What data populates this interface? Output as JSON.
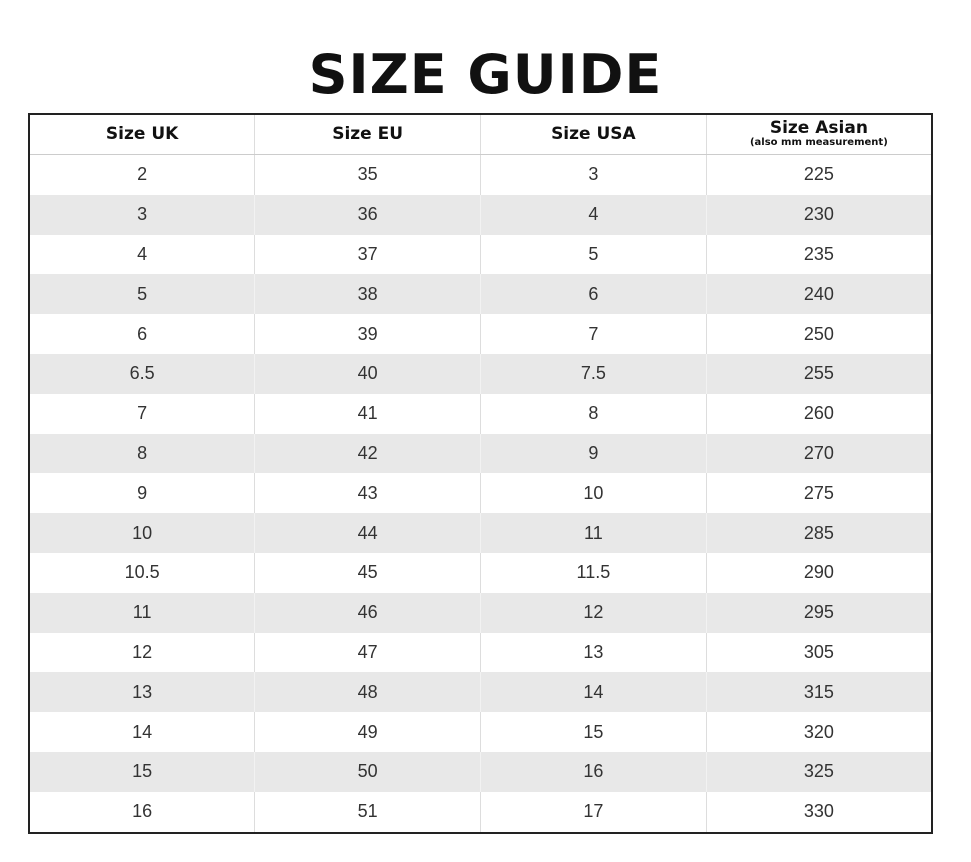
{
  "title": "SIZE GUIDE",
  "table": {
    "headers": [
      {
        "label": "Size UK",
        "sub": ""
      },
      {
        "label": "Size EU",
        "sub": ""
      },
      {
        "label": "Size USA",
        "sub": ""
      },
      {
        "label": "Size Asian",
        "sub": "(also mm measurement)"
      }
    ],
    "rows": [
      [
        "2",
        "35",
        "3",
        "225"
      ],
      [
        "3",
        "36",
        "4",
        "230"
      ],
      [
        "4",
        "37",
        "5",
        "235"
      ],
      [
        "5",
        "38",
        "6",
        "240"
      ],
      [
        "6",
        "39",
        "7",
        "250"
      ],
      [
        "6.5",
        "40",
        "7.5",
        "255"
      ],
      [
        "7",
        "41",
        "8",
        "260"
      ],
      [
        "8",
        "42",
        "9",
        "270"
      ],
      [
        "9",
        "43",
        "10",
        "275"
      ],
      [
        "10",
        "44",
        "11",
        "285"
      ],
      [
        "10.5",
        "45",
        "11.5",
        "290"
      ],
      [
        "11",
        "46",
        "12",
        "295"
      ],
      [
        "12",
        "47",
        "13",
        "305"
      ],
      [
        "13",
        "48",
        "14",
        "315"
      ],
      [
        "14",
        "49",
        "15",
        "320"
      ],
      [
        "15",
        "50",
        "16",
        "325"
      ],
      [
        "16",
        "51",
        "17",
        "330"
      ]
    ]
  },
  "colors": {
    "stripe": "#e8e8e8",
    "border": "#222222"
  }
}
